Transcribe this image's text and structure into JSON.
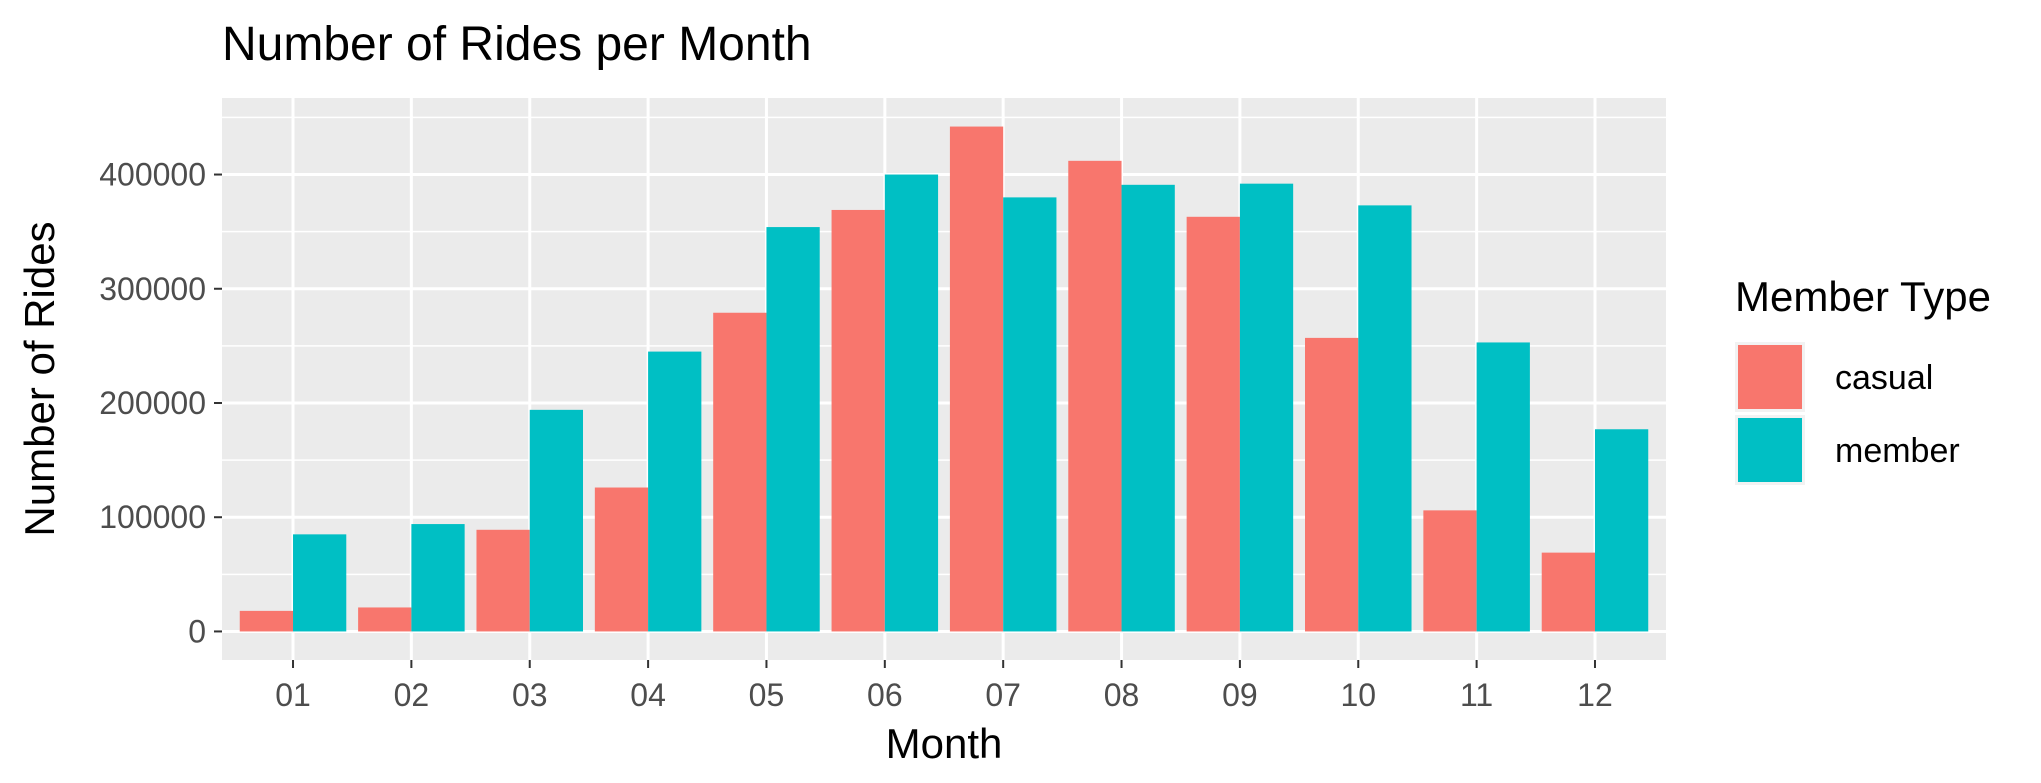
{
  "chart_data": {
    "type": "bar",
    "title": "Number of Rides per Month",
    "xlabel": "Month",
    "ylabel": "Number of Rides",
    "categories": [
      "01",
      "02",
      "03",
      "04",
      "05",
      "06",
      "07",
      "08",
      "09",
      "10",
      "11",
      "12"
    ],
    "series": [
      {
        "name": "casual",
        "color": "#F8766D",
        "values": [
          18000,
          21000,
          89000,
          126000,
          279000,
          369000,
          442000,
          412000,
          363000,
          257000,
          106000,
          69000
        ]
      },
      {
        "name": "member",
        "color": "#00BFC4",
        "values": [
          85000,
          94000,
          194000,
          245000,
          354000,
          400000,
          380000,
          391000,
          392000,
          373000,
          253000,
          177000
        ]
      }
    ],
    "ylim": [
      -25000,
      467000
    ],
    "yticks": [
      0,
      100000,
      200000,
      300000,
      400000
    ],
    "ytick_labels": [
      "0",
      "100000",
      "200000",
      "300000",
      "400000"
    ],
    "legend": {
      "title": "Member Type",
      "position": "right"
    },
    "grid": true,
    "panel_background": "#EBEBEB",
    "grid_color": "#FFFFFF"
  }
}
